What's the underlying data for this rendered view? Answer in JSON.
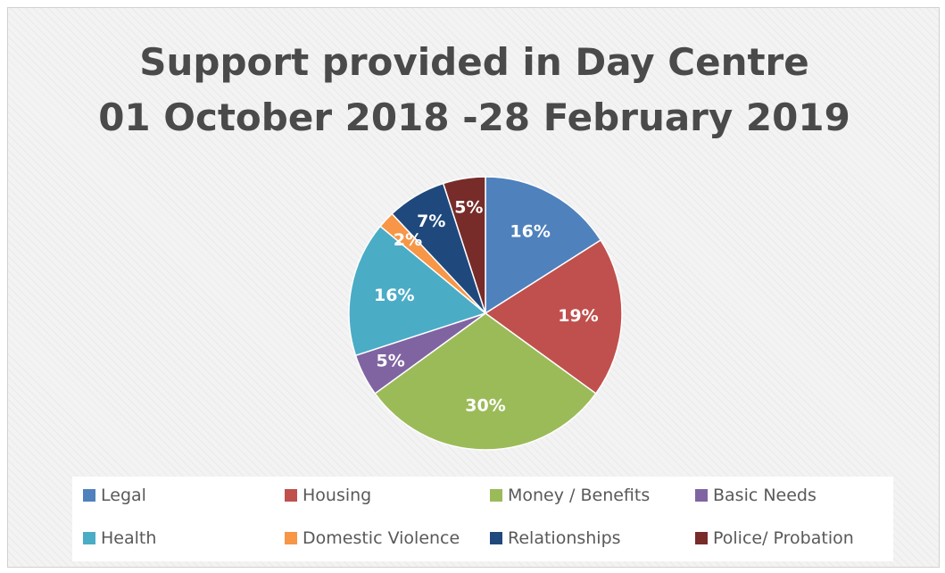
{
  "chart_data": {
    "type": "pie",
    "title": [
      "Support provided in Day Centre",
      "01 October 2018 -28 February 2019"
    ],
    "slices": [
      {
        "name": "Legal",
        "value": 16,
        "label": "16%",
        "color": "#4F81BD"
      },
      {
        "name": "Housing",
        "value": 19,
        "label": "19%",
        "color": "#C0504D"
      },
      {
        "name": "Money / Benefits",
        "value": 30,
        "label": "30%",
        "color": "#9BBB59"
      },
      {
        "name": "Basic Needs",
        "value": 5,
        "label": "5%",
        "color": "#8064A2"
      },
      {
        "name": "Health",
        "value": 16,
        "label": "16%",
        "color": "#4BACC6"
      },
      {
        "name": "Domestic Violence",
        "value": 2,
        "label": "2%",
        "color": "#F79646"
      },
      {
        "name": "Relationships",
        "value": 7,
        "label": "7%",
        "color": "#1F497D"
      },
      {
        "name": "Police/ Probation",
        "value": 5,
        "label": "5%",
        "color": "#772C2A"
      }
    ],
    "legend_position": "bottom"
  }
}
